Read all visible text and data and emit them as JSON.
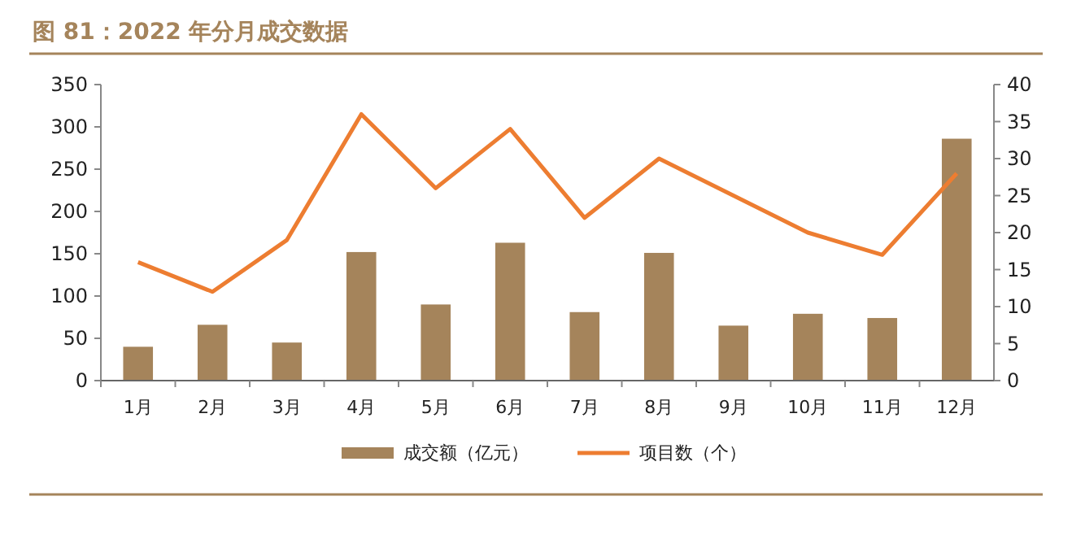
{
  "chart_data": {
    "type": "bar",
    "title": "图 81：2022 年分月成交数据",
    "categories": [
      "1月",
      "2月",
      "3月",
      "4月",
      "5月",
      "6月",
      "7月",
      "8月",
      "9月",
      "10月",
      "11月",
      "12月"
    ],
    "series": [
      {
        "name": "成交额（亿元）",
        "color": "#a5845b",
        "values": [
          40,
          66,
          45,
          152,
          90,
          163,
          81,
          151,
          65,
          79,
          74,
          286
        ]
      },
      {
        "name": "项目数（个）",
        "type": "line",
        "axis": "y2",
        "color": "#ed7d31",
        "values": [
          16,
          12,
          19,
          36,
          26,
          34,
          22,
          30,
          25,
          20,
          17,
          28
        ]
      }
    ],
    "ylim": [
      0,
      350
    ],
    "yticks": [
      0,
      50,
      100,
      150,
      200,
      250,
      300,
      350
    ],
    "y2lim": [
      0,
      40
    ],
    "y2ticks": [
      0,
      5,
      10,
      15,
      20,
      25,
      30,
      35,
      40
    ],
    "legend": "bottom",
    "grid": false,
    "marker": "none",
    "line_style": "solid"
  }
}
